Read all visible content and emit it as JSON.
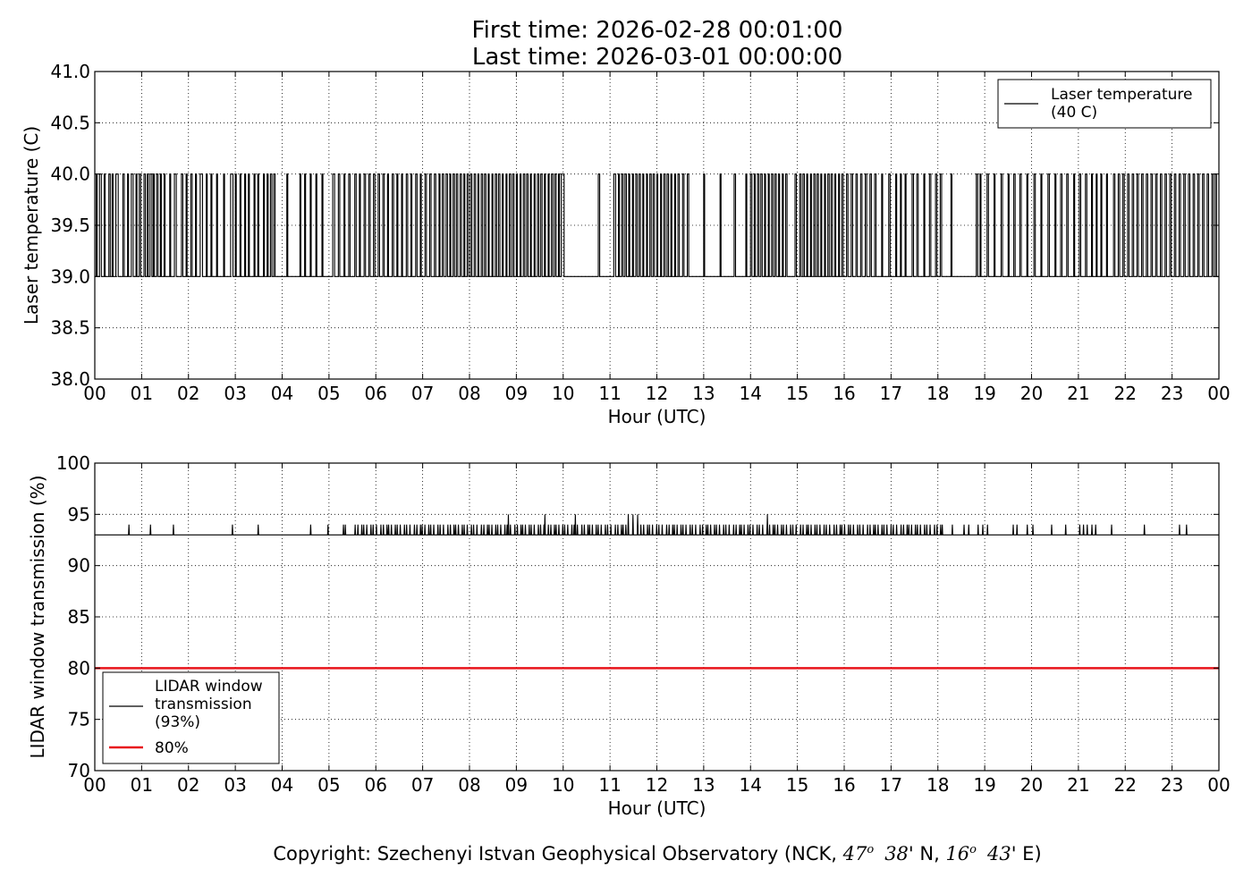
{
  "header": {
    "first_time": "First time: 2026-02-28 00:01:00",
    "last_time": "Last time: 2026-03-01 00:00:00"
  },
  "footer": {
    "prefix": "Copyright: Szechenyi Istvan Geophysical Observatory (NCK, ",
    "lat_deg": "47",
    "lat_min": "38",
    "lat_hemi": "' N, ",
    "lon_deg": "16",
    "lon_min": "43",
    "lon_hemi": "' E)",
    "degree_mark": "o"
  },
  "colors": {
    "series_line": "#000000",
    "threshold_line": "#e8141b",
    "grid": "#000000"
  },
  "chart_data": [
    {
      "type": "line",
      "xlabel": "Hour (UTC)",
      "ylabel": "Laser temperature (C)",
      "xlim": [
        0,
        24
      ],
      "ylim": [
        38.0,
        41.0
      ],
      "xticks": [
        "00",
        "01",
        "02",
        "03",
        "04",
        "05",
        "06",
        "07",
        "08",
        "09",
        "10",
        "11",
        "12",
        "13",
        "14",
        "15",
        "16",
        "17",
        "18",
        "19",
        "20",
        "21",
        "22",
        "23",
        "00"
      ],
      "yticks": [
        "38.0",
        "38.5",
        "39.0",
        "39.5",
        "40.0",
        "40.5",
        "41.0"
      ],
      "grid": true,
      "legend_position": "top-right",
      "levels": [
        39.0,
        40.0
      ],
      "series": [
        {
          "name": "Laser temperature\n(40 C)",
          "name_lines": [
            "Laser temperature",
            "(40 C)"
          ],
          "color": "#000000",
          "description_values": "oscillates between 39.0 and 40.0 throughout the day; steady 39.0 from ~10.05 to ~10.75 h",
          "high_segments": [
            [
              0.03,
              0.05
            ],
            [
              0.1,
              0.14
            ],
            [
              0.2,
              0.22
            ],
            [
              0.3,
              0.33
            ],
            [
              0.37,
              0.39
            ],
            [
              0.45,
              0.5
            ],
            [
              0.6,
              0.63
            ],
            [
              0.7,
              0.72
            ],
            [
              0.78,
              0.82
            ],
            [
              0.88,
              0.9
            ],
            [
              0.95,
              0.98
            ],
            [
              1.05,
              1.08
            ],
            [
              1.12,
              1.14
            ],
            [
              1.18,
              1.22
            ],
            [
              1.25,
              1.27
            ],
            [
              1.32,
              1.35
            ],
            [
              1.4,
              1.42
            ],
            [
              1.48,
              1.5
            ],
            [
              1.6,
              1.62
            ],
            [
              1.7,
              1.74
            ],
            [
              1.85,
              1.88
            ],
            [
              1.95,
              1.97
            ],
            [
              2.05,
              2.08
            ],
            [
              2.15,
              2.17
            ],
            [
              2.25,
              2.3
            ],
            [
              2.38,
              2.4
            ],
            [
              2.48,
              2.5
            ],
            [
              2.6,
              2.62
            ],
            [
              2.75,
              2.77
            ],
            [
              2.9,
              2.95
            ],
            [
              3.0,
              3.02
            ],
            [
              3.1,
              3.12
            ],
            [
              3.2,
              3.22
            ],
            [
              3.28,
              3.3
            ],
            [
              3.4,
              3.42
            ],
            [
              3.48,
              3.5
            ],
            [
              3.6,
              3.62
            ],
            [
              3.68,
              3.7
            ],
            [
              3.75,
              3.78
            ],
            [
              3.82,
              3.85
            ],
            [
              4.1,
              4.12
            ],
            [
              4.38,
              4.4
            ],
            [
              4.48,
              4.5
            ],
            [
              4.6,
              4.62
            ],
            [
              4.72,
              4.74
            ],
            [
              4.85,
              4.87
            ],
            [
              5.08,
              5.12
            ],
            [
              5.2,
              5.23
            ],
            [
              5.32,
              5.34
            ],
            [
              5.42,
              5.45
            ],
            [
              5.55,
              5.58
            ],
            [
              5.65,
              5.67
            ],
            [
              5.75,
              5.78
            ],
            [
              5.85,
              5.88
            ],
            [
              5.95,
              5.98
            ],
            [
              6.05,
              6.08
            ],
            [
              6.15,
              6.18
            ],
            [
              6.25,
              6.27
            ],
            [
              6.35,
              6.38
            ],
            [
              6.45,
              6.47
            ],
            [
              6.55,
              6.57
            ],
            [
              6.65,
              6.68
            ],
            [
              6.75,
              6.77
            ],
            [
              6.85,
              6.88
            ],
            [
              6.95,
              6.97
            ],
            [
              7.05,
              7.08
            ],
            [
              7.15,
              7.18
            ],
            [
              7.25,
              7.28
            ],
            [
              7.35,
              7.37
            ],
            [
              7.42,
              7.45
            ],
            [
              7.5,
              7.53
            ],
            [
              7.58,
              7.6
            ],
            [
              7.65,
              7.68
            ],
            [
              7.72,
              7.75
            ],
            [
              7.8,
              7.83
            ],
            [
              7.88,
              7.9
            ],
            [
              7.95,
              7.98
            ],
            [
              8.02,
              8.05
            ],
            [
              8.1,
              8.13
            ],
            [
              8.18,
              8.2
            ],
            [
              8.25,
              8.28
            ],
            [
              8.32,
              8.35
            ],
            [
              8.4,
              8.42
            ],
            [
              8.48,
              8.5
            ],
            [
              8.55,
              8.58
            ],
            [
              8.62,
              8.65
            ],
            [
              8.7,
              8.72
            ],
            [
              8.78,
              8.8
            ],
            [
              8.85,
              8.88
            ],
            [
              8.92,
              8.95
            ],
            [
              9.0,
              9.02
            ],
            [
              9.08,
              9.1
            ],
            [
              9.15,
              9.18
            ],
            [
              9.22,
              9.25
            ],
            [
              9.3,
              9.32
            ],
            [
              9.38,
              9.4
            ],
            [
              9.45,
              9.48
            ],
            [
              9.52,
              9.55
            ],
            [
              9.6,
              9.62
            ],
            [
              9.68,
              9.7
            ],
            [
              9.75,
              9.78
            ],
            [
              9.82,
              9.85
            ],
            [
              9.9,
              9.92
            ],
            [
              9.96,
              10.02
            ],
            [
              10.75,
              10.78
            ],
            [
              11.08,
              11.12
            ],
            [
              11.18,
              11.2
            ],
            [
              11.25,
              11.28
            ],
            [
              11.32,
              11.35
            ],
            [
              11.4,
              11.42
            ],
            [
              11.48,
              11.5
            ],
            [
              11.55,
              11.58
            ],
            [
              11.62,
              11.65
            ],
            [
              11.7,
              11.72
            ],
            [
              11.78,
              11.8
            ],
            [
              11.85,
              11.88
            ],
            [
              11.92,
              11.95
            ],
            [
              12.0,
              12.02
            ],
            [
              12.08,
              12.1
            ],
            [
              12.15,
              12.18
            ],
            [
              12.22,
              12.25
            ],
            [
              12.3,
              12.32
            ],
            [
              12.38,
              12.4
            ],
            [
              12.45,
              12.48
            ],
            [
              12.55,
              12.58
            ],
            [
              12.65,
              12.68
            ],
            [
              13.0,
              13.02
            ],
            [
              13.35,
              13.37
            ],
            [
              13.65,
              13.68
            ],
            [
              13.9,
              13.92
            ],
            [
              14.0,
              14.03
            ],
            [
              14.08,
              14.1
            ],
            [
              14.15,
              14.18
            ],
            [
              14.22,
              14.25
            ],
            [
              14.3,
              14.32
            ],
            [
              14.38,
              14.4
            ],
            [
              14.45,
              14.48
            ],
            [
              14.52,
              14.55
            ],
            [
              14.6,
              14.62
            ],
            [
              14.68,
              14.7
            ],
            [
              14.75,
              14.78
            ],
            [
              14.95,
              14.98
            ],
            [
              15.05,
              15.08
            ],
            [
              15.12,
              15.15
            ],
            [
              15.2,
              15.22
            ],
            [
              15.28,
              15.3
            ],
            [
              15.35,
              15.38
            ],
            [
              15.42,
              15.45
            ],
            [
              15.5,
              15.52
            ],
            [
              15.58,
              15.6
            ],
            [
              15.65,
              15.68
            ],
            [
              15.72,
              15.75
            ],
            [
              15.8,
              15.82
            ],
            [
              15.88,
              15.9
            ],
            [
              15.95,
              15.98
            ],
            [
              16.05,
              16.08
            ],
            [
              16.15,
              16.18
            ],
            [
              16.25,
              16.28
            ],
            [
              16.35,
              16.38
            ],
            [
              16.45,
              16.48
            ],
            [
              16.55,
              16.58
            ],
            [
              16.65,
              16.68
            ],
            [
              16.8,
              16.82
            ],
            [
              16.95,
              16.98
            ],
            [
              17.1,
              17.12
            ],
            [
              17.2,
              17.22
            ],
            [
              17.3,
              17.32
            ],
            [
              17.45,
              17.48
            ],
            [
              17.55,
              17.58
            ],
            [
              17.7,
              17.72
            ],
            [
              17.82,
              17.85
            ],
            [
              17.95,
              17.98
            ],
            [
              18.05,
              18.08
            ],
            [
              18.28,
              18.3
            ],
            [
              18.82,
              18.85
            ],
            [
              18.9,
              18.92
            ],
            [
              19.05,
              19.08
            ],
            [
              19.2,
              19.22
            ],
            [
              19.35,
              19.38
            ],
            [
              19.5,
              19.52
            ],
            [
              19.62,
              19.65
            ],
            [
              19.75,
              19.78
            ],
            [
              19.9,
              19.92
            ],
            [
              20.05,
              20.08
            ],
            [
              20.2,
              20.22
            ],
            [
              20.35,
              20.38
            ],
            [
              20.5,
              20.52
            ],
            [
              20.62,
              20.65
            ],
            [
              20.75,
              20.78
            ],
            [
              20.9,
              20.92
            ],
            [
              21.02,
              21.05
            ],
            [
              21.15,
              21.18
            ],
            [
              21.28,
              21.3
            ],
            [
              21.38,
              21.4
            ],
            [
              21.48,
              21.5
            ],
            [
              21.6,
              21.62
            ],
            [
              21.75,
              21.78
            ],
            [
              21.85,
              21.88
            ],
            [
              21.95,
              21.98
            ],
            [
              22.05,
              22.08
            ],
            [
              22.15,
              22.18
            ],
            [
              22.25,
              22.28
            ],
            [
              22.35,
              22.38
            ],
            [
              22.45,
              22.48
            ],
            [
              22.55,
              22.58
            ],
            [
              22.65,
              22.68
            ],
            [
              22.75,
              22.78
            ],
            [
              22.85,
              22.88
            ],
            [
              22.95,
              22.98
            ],
            [
              23.05,
              23.08
            ],
            [
              23.15,
              23.18
            ],
            [
              23.25,
              23.28
            ],
            [
              23.35,
              23.38
            ],
            [
              23.45,
              23.48
            ],
            [
              23.55,
              23.58
            ],
            [
              23.65,
              23.68
            ],
            [
              23.75,
              23.78
            ],
            [
              23.85,
              23.88
            ],
            [
              23.92,
              23.95
            ]
          ]
        }
      ]
    },
    {
      "type": "line",
      "xlabel": "Hour (UTC)",
      "ylabel": "LIDAR window transmission (%)",
      "xlim": [
        0,
        24
      ],
      "ylim": [
        70,
        100
      ],
      "xticks": [
        "00",
        "01",
        "02",
        "03",
        "04",
        "05",
        "06",
        "07",
        "08",
        "09",
        "10",
        "11",
        "12",
        "13",
        "14",
        "15",
        "16",
        "17",
        "18",
        "19",
        "20",
        "21",
        "22",
        "23",
        "00"
      ],
      "yticks": [
        "70",
        "75",
        "80",
        "85",
        "90",
        "95",
        "100"
      ],
      "grid": true,
      "legend_position": "bottom-left",
      "baseline": 93,
      "series": [
        {
          "name": "LIDAR window\ntransmission\n(93%)",
          "name_lines": [
            "LIDAR window",
            "transmission",
            "(93%)"
          ],
          "color": "#000000",
          "description_values": "baseline 93 with frequent 94 pulses 5.5-17.5 h and isolated spikes to 95",
          "spikes_94": [
            0.72,
            1.18,
            1.67,
            2.93,
            3.48,
            4.6,
            4.97,
            5.3,
            5.34
          ],
          "dense_94_ranges": [
            [
              5.55,
              11.35
            ],
            [
              11.65,
              18.1
            ]
          ],
          "sparse_94": [
            18.3,
            18.55,
            18.65,
            18.85,
            18.95,
            19.05,
            19.6,
            19.68,
            19.9,
            20.02,
            20.42,
            20.72,
            21.02,
            21.1,
            21.18,
            21.28,
            21.36,
            21.7,
            22.4,
            23.15,
            23.3
          ],
          "spikes_95": [
            8.82,
            9.6,
            10.25,
            11.38,
            11.48,
            11.58,
            14.35
          ]
        },
        {
          "name": "80%",
          "color": "#e8141b",
          "values": [
            [
              0,
              80
            ],
            [
              24,
              80
            ]
          ]
        }
      ]
    }
  ]
}
